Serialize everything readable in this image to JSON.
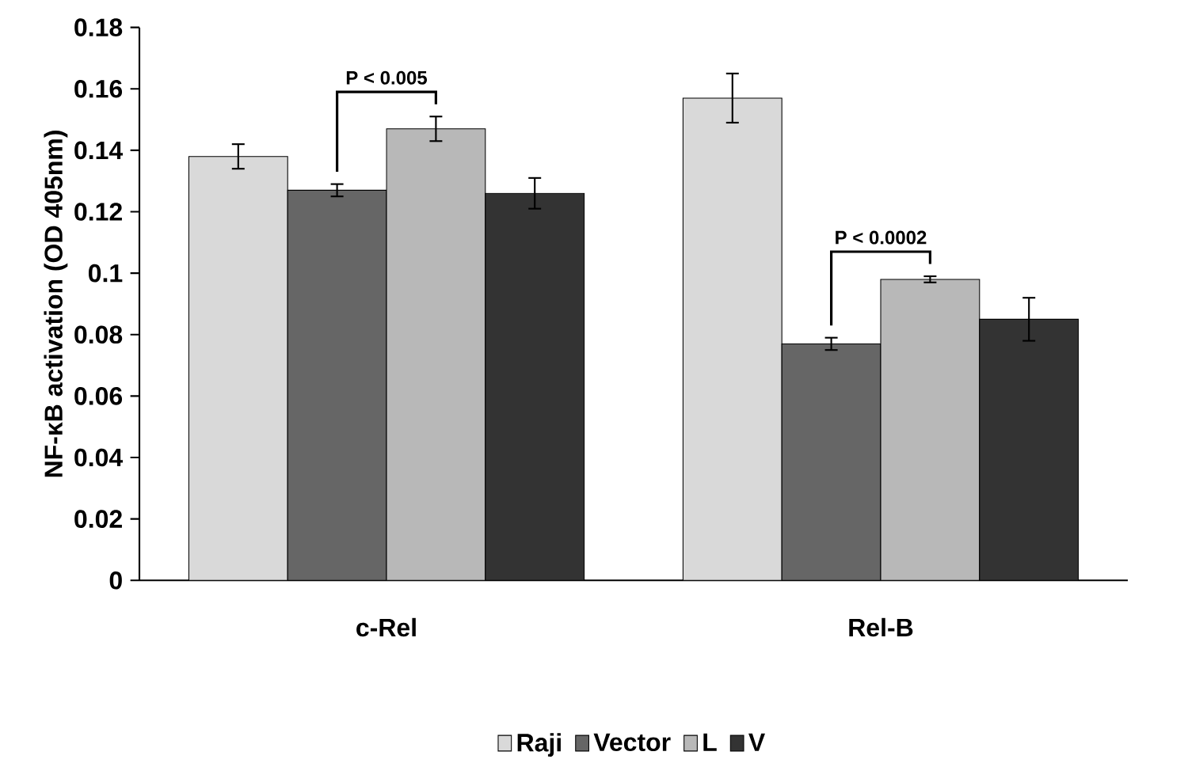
{
  "chart_data": {
    "type": "bar",
    "ylabel": "NF-κB activation (OD 405nm)",
    "categories": [
      "c-Rel",
      "Rel-B"
    ],
    "series": [
      {
        "name": "Raji",
        "color": "#d9d9d9",
        "values": [
          0.138,
          0.157
        ],
        "errors": [
          0.004,
          0.008
        ]
      },
      {
        "name": "Vector",
        "color": "#666666",
        "values": [
          0.127,
          0.077
        ],
        "errors": [
          0.002,
          0.002
        ]
      },
      {
        "name": "L",
        "color": "#b8b8b8",
        "values": [
          0.147,
          0.098
        ],
        "errors": [
          0.004,
          0.001
        ]
      },
      {
        "name": "V",
        "color": "#333333",
        "values": [
          0.126,
          0.085
        ],
        "errors": [
          0.005,
          0.007
        ]
      }
    ],
    "ylim": [
      0,
      0.18
    ],
    "yticks": [
      0,
      0.02,
      0.04,
      0.06,
      0.08,
      0.1,
      0.12,
      0.14,
      0.16,
      0.18
    ],
    "annotations": [
      "P < 0.005",
      "P < 0.0002"
    ],
    "legend": "bottom",
    "grid": false
  }
}
